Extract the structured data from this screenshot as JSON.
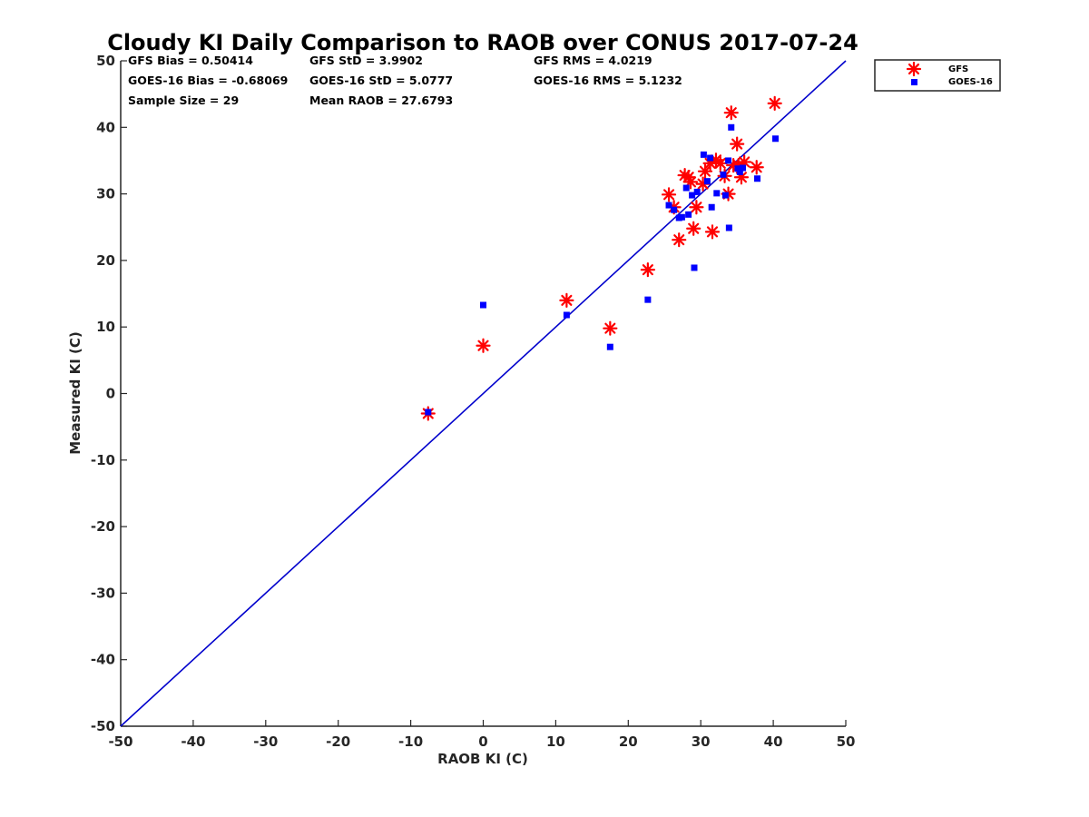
{
  "chart_data": {
    "type": "scatter",
    "title": "Cloudy KI Daily Comparison to RAOB over CONUS 2017-07-24",
    "xlabel": "RAOB KI (C)",
    "ylabel": "Measured KI (C)",
    "xlim": [
      -50,
      50
    ],
    "ylim": [
      -50,
      50
    ],
    "xticks": [
      -50,
      -40,
      -30,
      -20,
      -10,
      0,
      10,
      20,
      30,
      40,
      50
    ],
    "yticks": [
      -50,
      -40,
      -30,
      -20,
      -10,
      0,
      10,
      20,
      30,
      40,
      50
    ],
    "grid": false,
    "legend_position": "top-right outside",
    "reference_line": {
      "from": [
        -50,
        -50
      ],
      "to": [
        50,
        50
      ],
      "color": "#0000cc"
    },
    "stats": {
      "gfs_bias": "GFS Bias = 0.50414",
      "goes_bias": "GOES-16 Bias = -0.68069",
      "sample_size": "Sample Size = 29",
      "gfs_std": "GFS StD = 3.9902",
      "goes_std": "GOES-16 StD = 5.0777",
      "mean_raob": "Mean RAOB = 27.6793",
      "gfs_rms": "GFS RMS = 4.0219",
      "goes_rms": "GOES-16 RMS = 5.1232"
    },
    "series": [
      {
        "name": "GFS",
        "marker": "asterisk",
        "color": "#ff0000",
        "points": [
          [
            -7.6,
            -3.0
          ],
          [
            0.0,
            7.2
          ],
          [
            11.5,
            14.0
          ],
          [
            17.5,
            9.8
          ],
          [
            22.7,
            18.6
          ],
          [
            25.6,
            29.9
          ],
          [
            26.3,
            28.0
          ],
          [
            27.0,
            23.1
          ],
          [
            27.8,
            32.8
          ],
          [
            28.3,
            32.5
          ],
          [
            28.6,
            31.8
          ],
          [
            29.0,
            24.8
          ],
          [
            29.4,
            28.0
          ],
          [
            30.3,
            31.5
          ],
          [
            30.6,
            33.4
          ],
          [
            31.3,
            34.6
          ],
          [
            31.6,
            24.3
          ],
          [
            32.1,
            35.1
          ],
          [
            32.7,
            34.6
          ],
          [
            33.3,
            32.7
          ],
          [
            33.8,
            30.0
          ],
          [
            34.2,
            42.2
          ],
          [
            34.5,
            34.3
          ],
          [
            35.0,
            37.5
          ],
          [
            35.2,
            34.3
          ],
          [
            35.6,
            32.5
          ],
          [
            36.0,
            34.8
          ],
          [
            37.7,
            34.0
          ],
          [
            40.2,
            43.6
          ]
        ]
      },
      {
        "name": "GOES-16",
        "marker": "square",
        "color": "#0000ff",
        "points": [
          [
            -7.6,
            -2.8
          ],
          [
            0.0,
            13.3
          ],
          [
            11.5,
            11.8
          ],
          [
            17.5,
            7.0
          ],
          [
            22.7,
            14.1
          ],
          [
            25.6,
            28.3
          ],
          [
            26.3,
            27.6
          ],
          [
            27.0,
            26.4
          ],
          [
            27.4,
            26.5
          ],
          [
            28.0,
            30.9
          ],
          [
            28.3,
            26.9
          ],
          [
            28.8,
            29.8
          ],
          [
            29.1,
            18.9
          ],
          [
            29.5,
            30.3
          ],
          [
            30.4,
            35.9
          ],
          [
            31.3,
            35.4
          ],
          [
            30.9,
            31.9
          ],
          [
            31.5,
            28.0
          ],
          [
            32.2,
            30.1
          ],
          [
            33.1,
            32.9
          ],
          [
            33.4,
            29.8
          ],
          [
            33.8,
            35.0
          ],
          [
            33.9,
            24.9
          ],
          [
            34.2,
            40.0
          ],
          [
            35.1,
            33.8
          ],
          [
            35.4,
            33.3
          ],
          [
            35.8,
            33.9
          ],
          [
            37.8,
            32.3
          ],
          [
            40.3,
            38.3
          ]
        ]
      }
    ]
  }
}
